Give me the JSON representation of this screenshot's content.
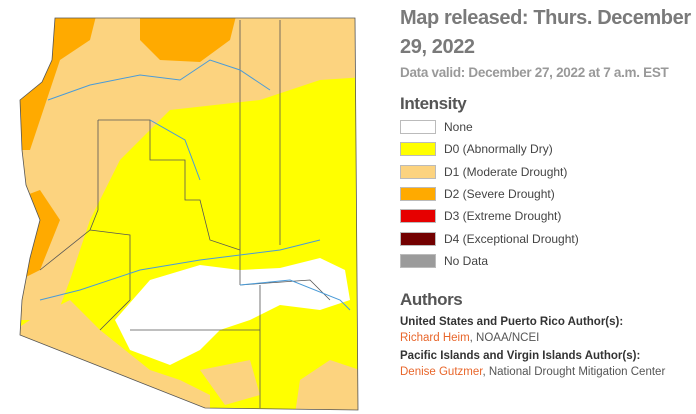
{
  "header": {
    "title": "Map released: Thurs. December 29, 2022",
    "subtitle": "Data valid: December 27, 2022 at 7 a.m. EST"
  },
  "legend": {
    "title": "Intensity",
    "items": [
      {
        "label": "None",
        "color": "#ffffff"
      },
      {
        "label": "D0 (Abnormally Dry)",
        "color": "#ffff00"
      },
      {
        "label": "D1 (Moderate Drought)",
        "color": "#fcd37f"
      },
      {
        "label": "D2 (Severe Drought)",
        "color": "#ffaa00"
      },
      {
        "label": "D3 (Extreme Drought)",
        "color": "#e60000"
      },
      {
        "label": "D4 (Exceptional Drought)",
        "color": "#730000"
      },
      {
        "label": "No Data",
        "color": "#9b9b9b"
      }
    ]
  },
  "authors": {
    "title": "Authors",
    "groups": [
      {
        "heading": "United States and Puerto Rico Author(s):",
        "name": "Richard Heim",
        "affiliation": ", NOAA/NCEI"
      },
      {
        "heading": "Pacific Islands and Virgin Islands Author(s):",
        "name": "Denise Gutzmer",
        "affiliation": ", National Drought Mitigation Center"
      }
    ]
  }
}
